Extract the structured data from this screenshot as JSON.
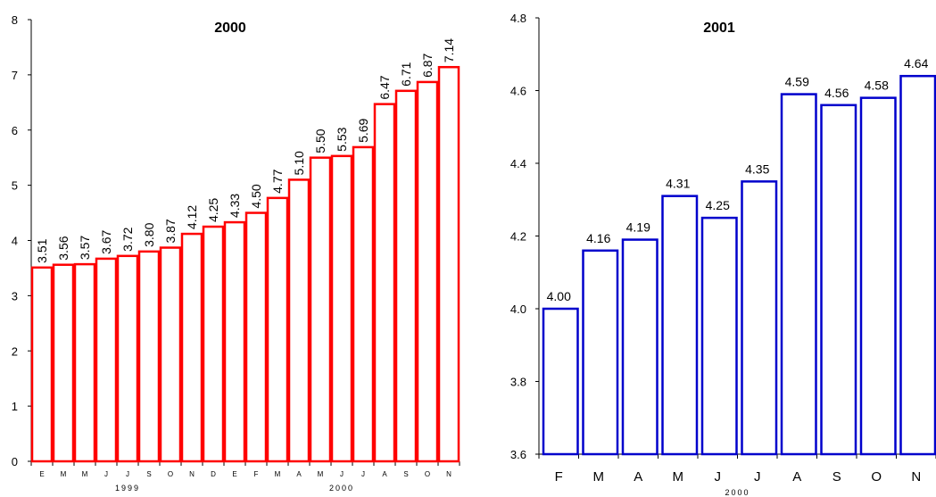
{
  "chart_data": [
    {
      "type": "bar",
      "title": "2000",
      "categories": [
        "E",
        "M",
        "M",
        "J",
        "J",
        "S",
        "O",
        "N",
        "D",
        "E",
        "F",
        "M",
        "A",
        "M",
        "J",
        "J",
        "A",
        "S",
        "O",
        "N"
      ],
      "category_groups": [
        {
          "label": "1999",
          "from": 0,
          "to": 8
        },
        {
          "label": "2000",
          "from": 9,
          "to": 19
        }
      ],
      "values": [
        3.51,
        3.56,
        3.57,
        3.67,
        3.72,
        3.8,
        3.87,
        4.12,
        4.25,
        4.33,
        4.5,
        4.77,
        5.1,
        5.5,
        5.53,
        5.69,
        6.47,
        6.71,
        6.87,
        7.14
      ],
      "value_labels": [
        "3.51",
        "3.56",
        "3.57",
        "3.67",
        "3.72",
        "3.80",
        "3.87",
        "4.12",
        "4.25",
        "4.33",
        "4.50",
        "4.77",
        "5.10",
        "5.50",
        "5.53",
        "5.69",
        "6.47",
        "6.71",
        "6.87",
        "7.14"
      ],
      "yticks": [
        "0",
        "1",
        "2",
        "3",
        "4",
        "5",
        "6",
        "7",
        "8"
      ],
      "ylim": [
        0,
        8
      ],
      "color": "#ff0000",
      "grid": false
    },
    {
      "type": "bar",
      "title": "2001",
      "categories": [
        "F",
        "M",
        "A",
        "M",
        "J",
        "J",
        "A",
        "S",
        "O",
        "N"
      ],
      "category_groups": [
        {
          "label": "2000",
          "from": 0,
          "to": 9
        }
      ],
      "values": [
        4.0,
        4.16,
        4.19,
        4.31,
        4.25,
        4.35,
        4.59,
        4.56,
        4.58,
        4.64
      ],
      "value_labels": [
        "4.00",
        "4.16",
        "4.19",
        "4.31",
        "4.25",
        "4.35",
        "4.59",
        "4.56",
        "4.58",
        "4.64"
      ],
      "yticks": [
        "3.6",
        "3.8",
        "4.0",
        "4.2",
        "4.4",
        "4.6",
        "4.8"
      ],
      "ylim": [
        3.6,
        4.8
      ],
      "color": "#0000cc",
      "grid": false
    }
  ]
}
